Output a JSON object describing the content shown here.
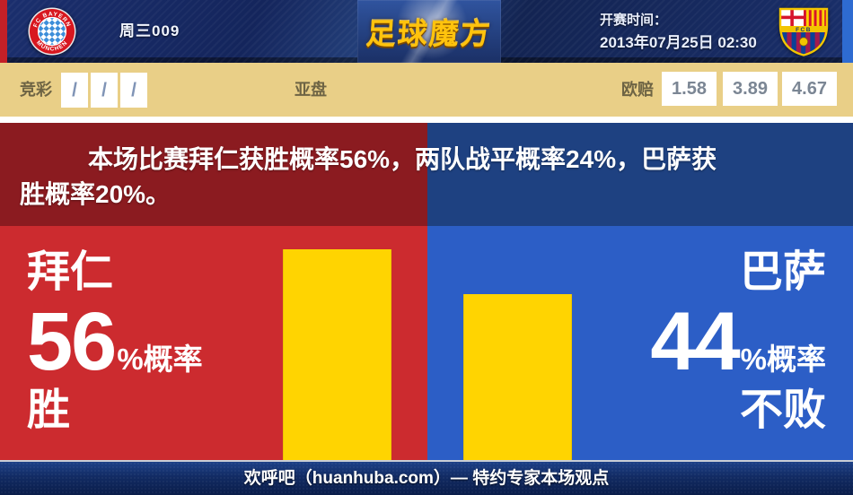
{
  "header": {
    "match_code": "周三009",
    "brand": "足球魔方",
    "kickoff_label": "开赛时间：",
    "kickoff_value": "2013年07月25日 02:30",
    "home_badge": {
      "icon": "fc-bayern-crest",
      "ring_top": "FC BAYERN",
      "ring_bottom": "MÜNCHEN"
    },
    "away_badge": {
      "icon": "fc-barcelona-crest",
      "band_text": "FCB"
    }
  },
  "odds_row": {
    "jingcai_label": "竞彩",
    "jingcai_values": [
      "/",
      "/",
      "/"
    ],
    "yapan_label": "亚盘",
    "oupei_label": "欧赔",
    "oupei_values": [
      "1.58",
      "3.89",
      "4.67"
    ]
  },
  "prediction": {
    "summary_lines": [
      "本场比赛拜仁获胜概率56%，两队战平概率24%，巴萨获",
      "胜概率20%。"
    ],
    "home": {
      "name": "拜仁",
      "value": "56",
      "suffix": "%概率",
      "outcome": "胜"
    },
    "away": {
      "name": "巴萨",
      "value": "44",
      "suffix": "%概率",
      "outcome": "不败"
    }
  },
  "chart_data": {
    "type": "bar",
    "categories": [
      "拜仁",
      "巴萨"
    ],
    "values": [
      56,
      44
    ],
    "ylim": [
      0,
      100
    ],
    "bar_color": "#ffd401",
    "annotations": {
      "home_win_pct": 56,
      "draw_pct": 24,
      "away_win_pct": 20
    }
  },
  "footer": {
    "text": "欢呼吧（huanhuba.com）— 特约专家本场观点"
  },
  "colors": {
    "header_navy": "#16265c",
    "left_stripe": "#c32027",
    "right_stripe": "#2e6bd1",
    "odds_row_tan": "#e9cf87",
    "home_dark": "#8b1b20",
    "home_bright": "#cc2b2f",
    "away_dark": "#1e4181",
    "away_bright": "#2c5ec6",
    "bar_yellow": "#ffd401",
    "footer_navy": "#122b63"
  }
}
